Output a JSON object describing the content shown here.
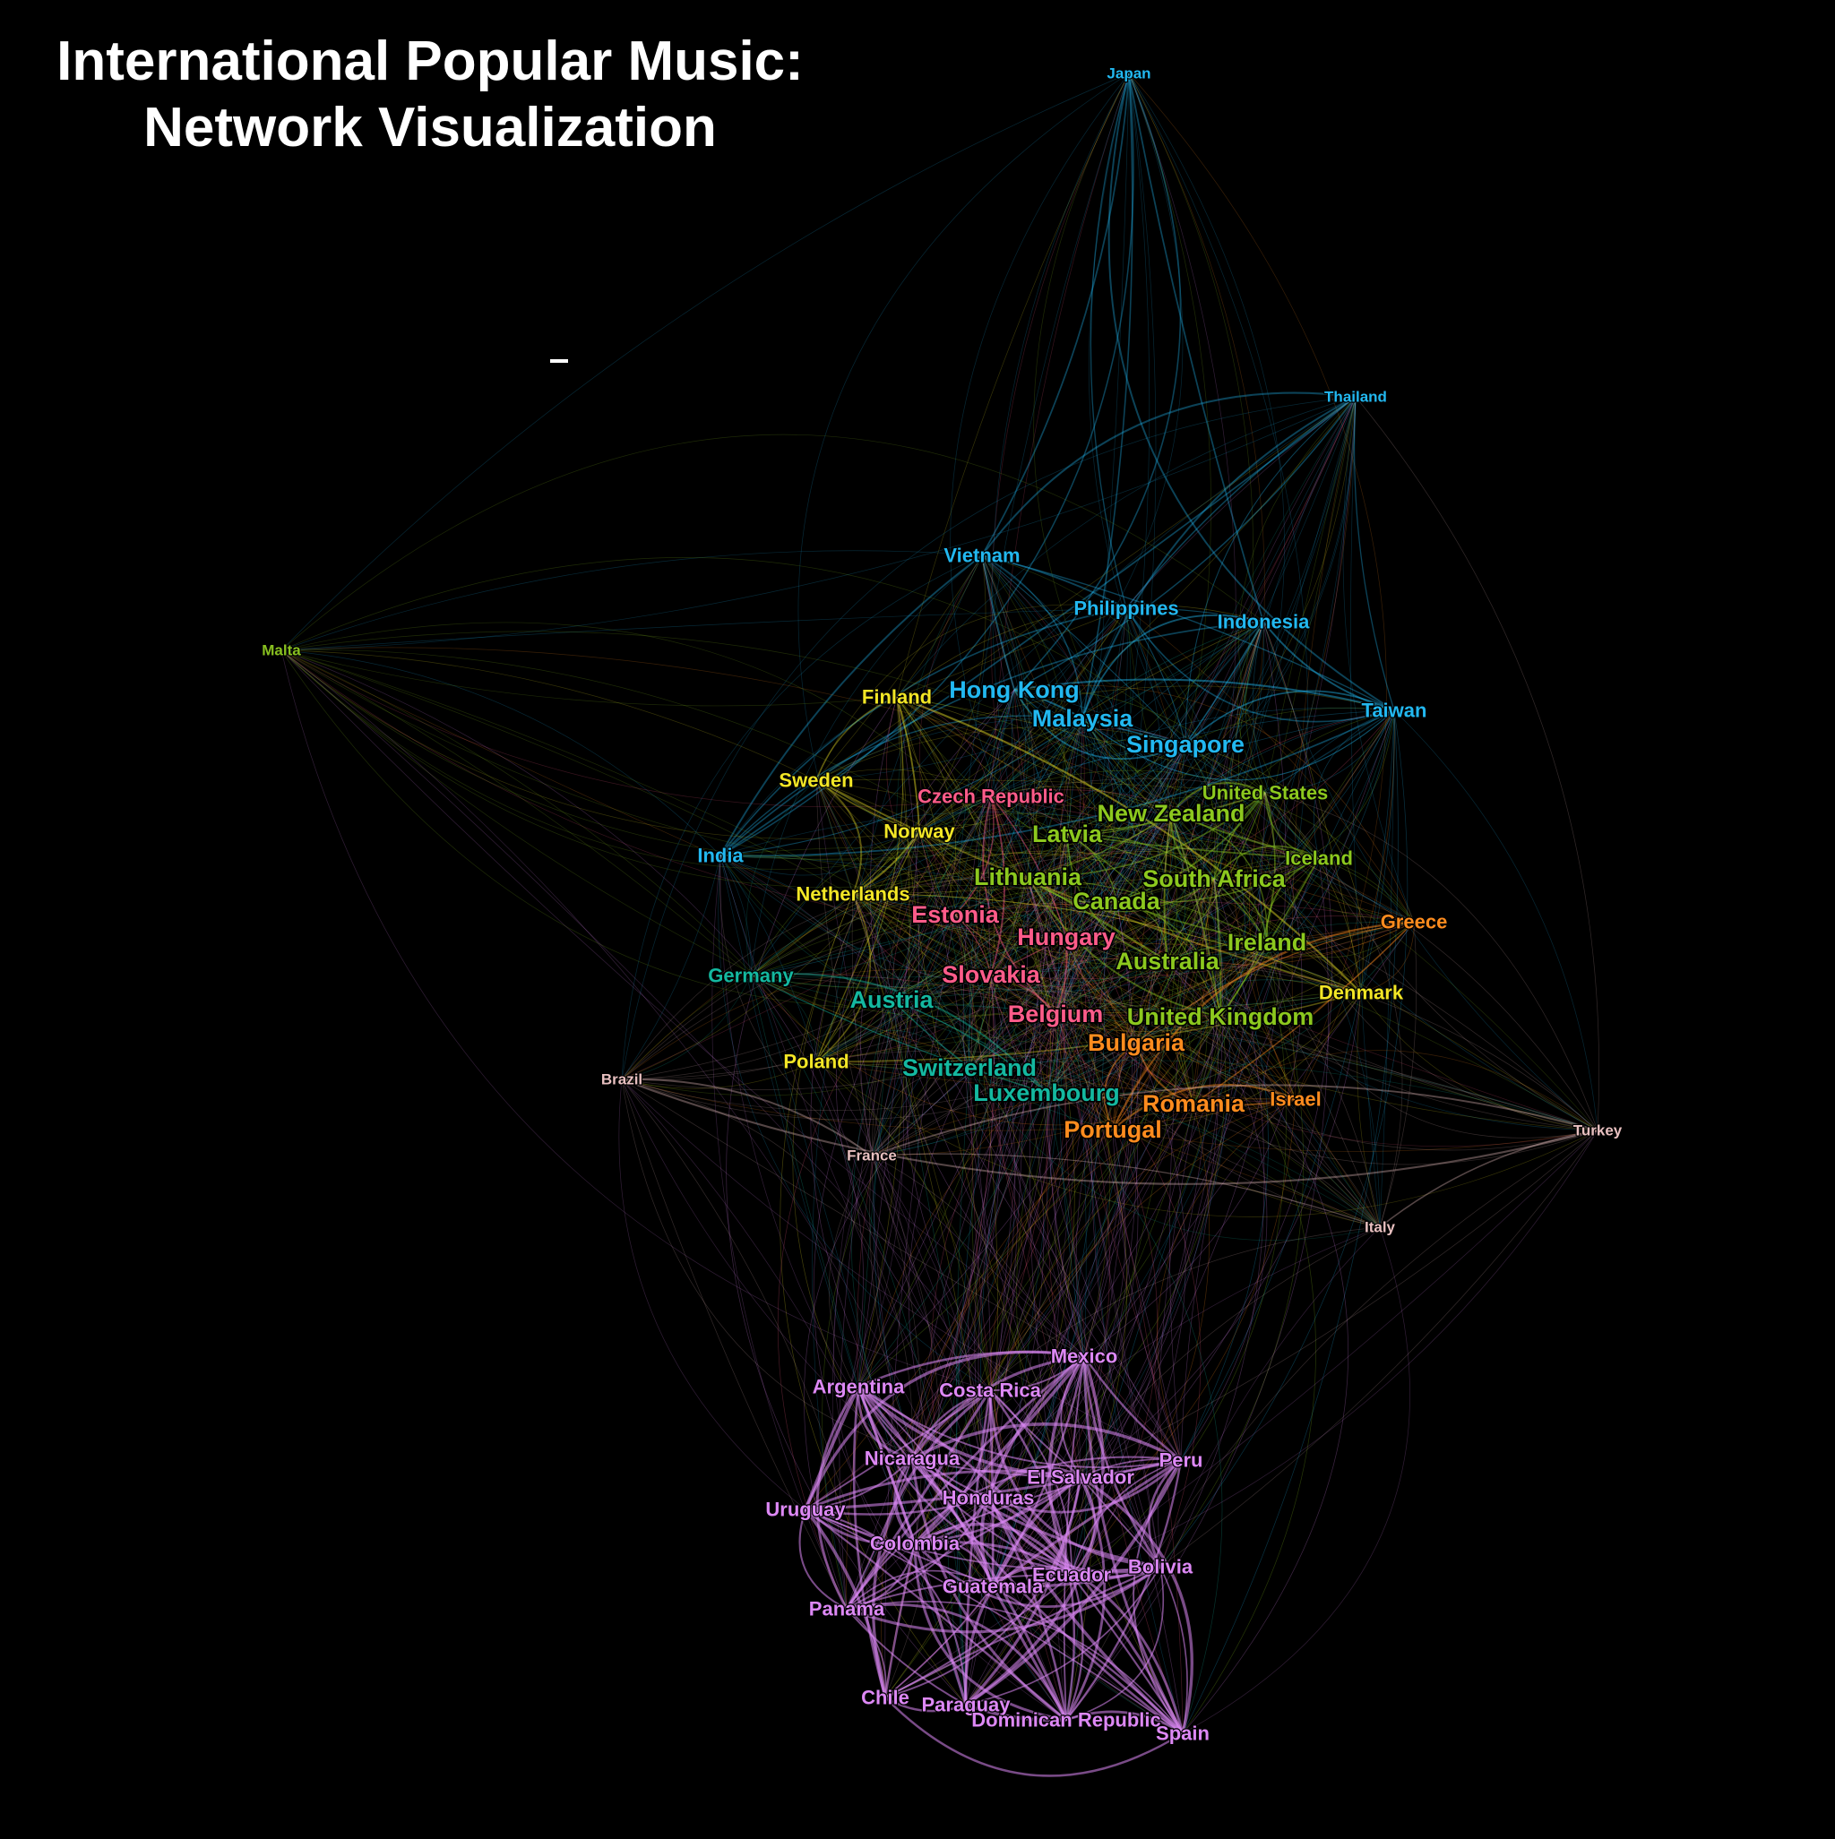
{
  "title": {
    "line1": "International Popular Music:",
    "line2": "Network Visualization"
  },
  "colors": {
    "background": "#000000",
    "asia": "#22b8f0",
    "anglo": "#8cc81e",
    "nordic_benelux": "#f2e626",
    "central_europe": "#ff5c8a",
    "german_speaking": "#14b8a0",
    "south_europe": "#ff8c1e",
    "latin": "#dd88f5",
    "misc": "#e8c0c0",
    "malta": "#88c020"
  },
  "nodes": [
    {
      "name": "Japan",
      "group": "asia",
      "size": "small"
    },
    {
      "name": "Thailand",
      "group": "asia",
      "size": "small"
    },
    {
      "name": "Vietnam",
      "group": "asia",
      "size": "medium"
    },
    {
      "name": "Philippines",
      "group": "asia",
      "size": "medium"
    },
    {
      "name": "Indonesia",
      "group": "asia",
      "size": "medium"
    },
    {
      "name": "Hong Kong",
      "group": "asia",
      "size": "large"
    },
    {
      "name": "Malaysia",
      "group": "asia",
      "size": "large"
    },
    {
      "name": "Singapore",
      "group": "asia",
      "size": "large"
    },
    {
      "name": "Taiwan",
      "group": "asia",
      "size": "medium"
    },
    {
      "name": "India",
      "group": "asia",
      "size": "medium"
    },
    {
      "name": "Malta",
      "group": "malta",
      "size": "small"
    },
    {
      "name": "Finland",
      "group": "nordic_benelux",
      "size": "medium"
    },
    {
      "name": "Sweden",
      "group": "nordic_benelux",
      "size": "medium"
    },
    {
      "name": "Norway",
      "group": "nordic_benelux",
      "size": "medium"
    },
    {
      "name": "Netherlands",
      "group": "nordic_benelux",
      "size": "medium"
    },
    {
      "name": "Poland",
      "group": "nordic_benelux",
      "size": "medium"
    },
    {
      "name": "Denmark",
      "group": "nordic_benelux",
      "size": "medium"
    },
    {
      "name": "Czech Republic",
      "group": "central_europe",
      "size": "medium"
    },
    {
      "name": "Estonia",
      "group": "central_europe",
      "size": "large"
    },
    {
      "name": "Hungary",
      "group": "central_europe",
      "size": "large"
    },
    {
      "name": "Slovakia",
      "group": "central_europe",
      "size": "large"
    },
    {
      "name": "Belgium",
      "group": "central_europe",
      "size": "large"
    },
    {
      "name": "United States",
      "group": "anglo",
      "size": "medium"
    },
    {
      "name": "New Zealand",
      "group": "anglo",
      "size": "large"
    },
    {
      "name": "Latvia",
      "group": "anglo",
      "size": "large"
    },
    {
      "name": "Lithuania",
      "group": "anglo",
      "size": "large"
    },
    {
      "name": "South Africa",
      "group": "anglo",
      "size": "large"
    },
    {
      "name": "Iceland",
      "group": "anglo",
      "size": "medium"
    },
    {
      "name": "Canada",
      "group": "anglo",
      "size": "large"
    },
    {
      "name": "Ireland",
      "group": "anglo",
      "size": "large"
    },
    {
      "name": "Australia",
      "group": "anglo",
      "size": "large"
    },
    {
      "name": "United Kingdom",
      "group": "anglo",
      "size": "large"
    },
    {
      "name": "Germany",
      "group": "german_speaking",
      "size": "medium"
    },
    {
      "name": "Austria",
      "group": "german_speaking",
      "size": "large"
    },
    {
      "name": "Switzerland",
      "group": "german_speaking",
      "size": "large"
    },
    {
      "name": "Luxembourg",
      "group": "german_speaking",
      "size": "large"
    },
    {
      "name": "Greece",
      "group": "south_europe",
      "size": "medium"
    },
    {
      "name": "Bulgaria",
      "group": "south_europe",
      "size": "large"
    },
    {
      "name": "Romania",
      "group": "south_europe",
      "size": "large"
    },
    {
      "name": "Israel",
      "group": "south_europe",
      "size": "medium"
    },
    {
      "name": "Portugal",
      "group": "south_europe",
      "size": "large"
    },
    {
      "name": "Brazil",
      "group": "misc",
      "size": "small"
    },
    {
      "name": "France",
      "group": "misc",
      "size": "small"
    },
    {
      "name": "Turkey",
      "group": "misc",
      "size": "small"
    },
    {
      "name": "Italy",
      "group": "misc",
      "size": "small"
    },
    {
      "name": "Mexico",
      "group": "latin",
      "size": "medium"
    },
    {
      "name": "Argentina",
      "group": "latin",
      "size": "medium"
    },
    {
      "name": "Costa Rica",
      "group": "latin",
      "size": "medium"
    },
    {
      "name": "Peru",
      "group": "latin",
      "size": "medium"
    },
    {
      "name": "Nicaragua",
      "group": "latin",
      "size": "medium"
    },
    {
      "name": "El Salvador",
      "group": "latin",
      "size": "medium"
    },
    {
      "name": "Honduras",
      "group": "latin",
      "size": "medium"
    },
    {
      "name": "Uruguay",
      "group": "latin",
      "size": "medium"
    },
    {
      "name": "Colombia",
      "group": "latin",
      "size": "medium"
    },
    {
      "name": "Ecuador",
      "group": "latin",
      "size": "medium"
    },
    {
      "name": "Bolivia",
      "group": "latin",
      "size": "medium"
    },
    {
      "name": "Guatemala",
      "group": "latin",
      "size": "medium"
    },
    {
      "name": "Panama",
      "group": "latin",
      "size": "medium"
    },
    {
      "name": "Chile",
      "group": "latin",
      "size": "medium"
    },
    {
      "name": "Paraguay",
      "group": "latin",
      "size": "medium"
    },
    {
      "name": "Dominican Republic",
      "group": "latin",
      "size": "medium"
    },
    {
      "name": "Spain",
      "group": "latin",
      "size": "medium"
    }
  ]
}
